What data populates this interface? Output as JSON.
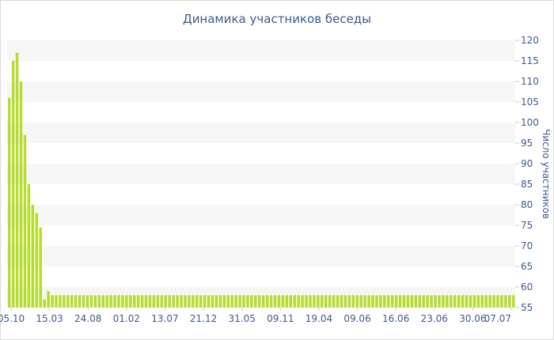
{
  "chart_data": {
    "type": "bar",
    "title": "Динамика участников беседы",
    "xlabel": "",
    "ylabel": "Число участников",
    "ylim": [
      55,
      120
    ],
    "y_ticks": [
      55,
      60,
      65,
      70,
      75,
      80,
      85,
      90,
      95,
      100,
      105,
      110,
      115,
      120
    ],
    "y_axis_side": "right",
    "grid": "alternating horizontal bands",
    "colors": {
      "bar": "#b5dc2e",
      "text": "#3e5a8c",
      "band": "#f6f6f6"
    },
    "x_tick_labels": [
      "05.10",
      "15.03",
      "24.08",
      "01.02",
      "13.07",
      "21.12",
      "31.05",
      "09.11",
      "19.04",
      "09.06",
      "16.06",
      "23.06",
      "30.06",
      "07.07"
    ],
    "values": [
      106,
      115,
      117,
      110,
      97,
      85,
      80,
      78,
      74.5,
      57,
      59,
      58,
      58,
      58,
      58,
      58,
      58,
      58,
      58,
      58,
      58,
      58,
      58,
      58,
      58,
      58,
      58,
      58,
      58,
      58,
      58,
      58,
      58,
      58,
      58,
      58,
      58,
      58,
      58,
      58,
      58,
      58,
      58,
      58,
      58,
      58,
      58,
      58,
      58,
      58,
      58,
      58,
      58,
      58,
      58,
      58,
      58,
      58,
      58,
      58,
      58,
      58,
      58,
      58,
      58,
      58,
      58,
      58,
      58,
      58,
      58,
      58,
      58,
      58,
      58,
      58,
      58,
      58,
      58,
      58,
      58,
      58,
      58,
      58,
      58,
      58,
      58,
      58,
      58,
      58,
      58,
      58,
      58,
      58,
      58,
      58,
      58,
      58,
      58,
      58,
      58,
      58,
      58,
      58,
      58,
      58,
      58,
      58,
      58,
      58,
      58,
      58,
      58,
      58,
      58,
      58,
      58,
      58,
      58,
      58,
      58,
      58,
      58,
      58,
      58,
      58,
      58,
      58,
      58,
      58
    ]
  }
}
